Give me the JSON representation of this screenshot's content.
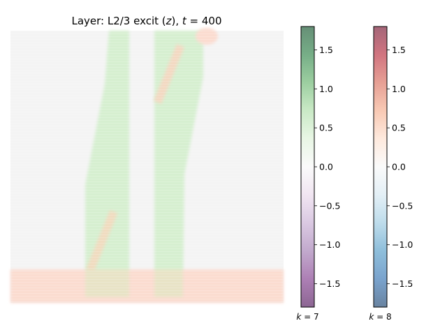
{
  "chart_data": [
    {
      "type": "heatmap",
      "title": "Layer: L2/3 excit (z), t = 400",
      "title_parts": {
        "prefix": "Layer: L2/3 excit (",
        "var": "z",
        "mid": "), ",
        "tvar": "t",
        "suffix": " = 400"
      },
      "xlabel": "",
      "ylabel": "",
      "axes_visible": false,
      "background_color": "#f4f4f4",
      "overlays": [
        {
          "name": "k = 7",
          "colormap": "PRGn",
          "color": "#d6efd0"
        },
        {
          "name": "k = 8",
          "colormap": "RdBu_r",
          "color": "#fbdcd0"
        }
      ]
    },
    {
      "type": "colorbar",
      "colormap": "PRGn",
      "alpha": 0.6,
      "vmin": -1.8,
      "vmax": 1.8,
      "ticks": [
        1.5,
        1.0,
        0.5,
        0.0,
        -0.5,
        -1.0,
        -1.5
      ],
      "tick_labels": [
        "1.5",
        "1.0",
        "0.5",
        "0.0",
        "−0.5",
        "−1.0",
        "−1.5"
      ],
      "label": {
        "var": "k",
        "rest": " = 7"
      },
      "stops": [
        "#40004b",
        "#762a83",
        "#9970ab",
        "#c2a5cf",
        "#e7d4e8",
        "#f7f7f7",
        "#d9f0d3",
        "#a6dba0",
        "#5aae61",
        "#1b7837",
        "#00441b"
      ]
    },
    {
      "type": "colorbar",
      "colormap": "RdBu_r",
      "alpha": 0.6,
      "vmin": -1.8,
      "vmax": 1.8,
      "ticks": [
        1.5,
        1.0,
        0.5,
        0.0,
        -0.5,
        -1.0,
        -1.5
      ],
      "tick_labels": [
        "1.5",
        "1.0",
        "0.5",
        "0.0",
        "−0.5",
        "−1.0",
        "−1.5"
      ],
      "label": {
        "var": "k",
        "rest": " = 8"
      },
      "stops": [
        "#053061",
        "#2166ac",
        "#4393c3",
        "#92c5de",
        "#d1e5f0",
        "#f7f7f7",
        "#fddbc7",
        "#f4a582",
        "#d6604d",
        "#b2182b",
        "#67001f"
      ]
    }
  ]
}
